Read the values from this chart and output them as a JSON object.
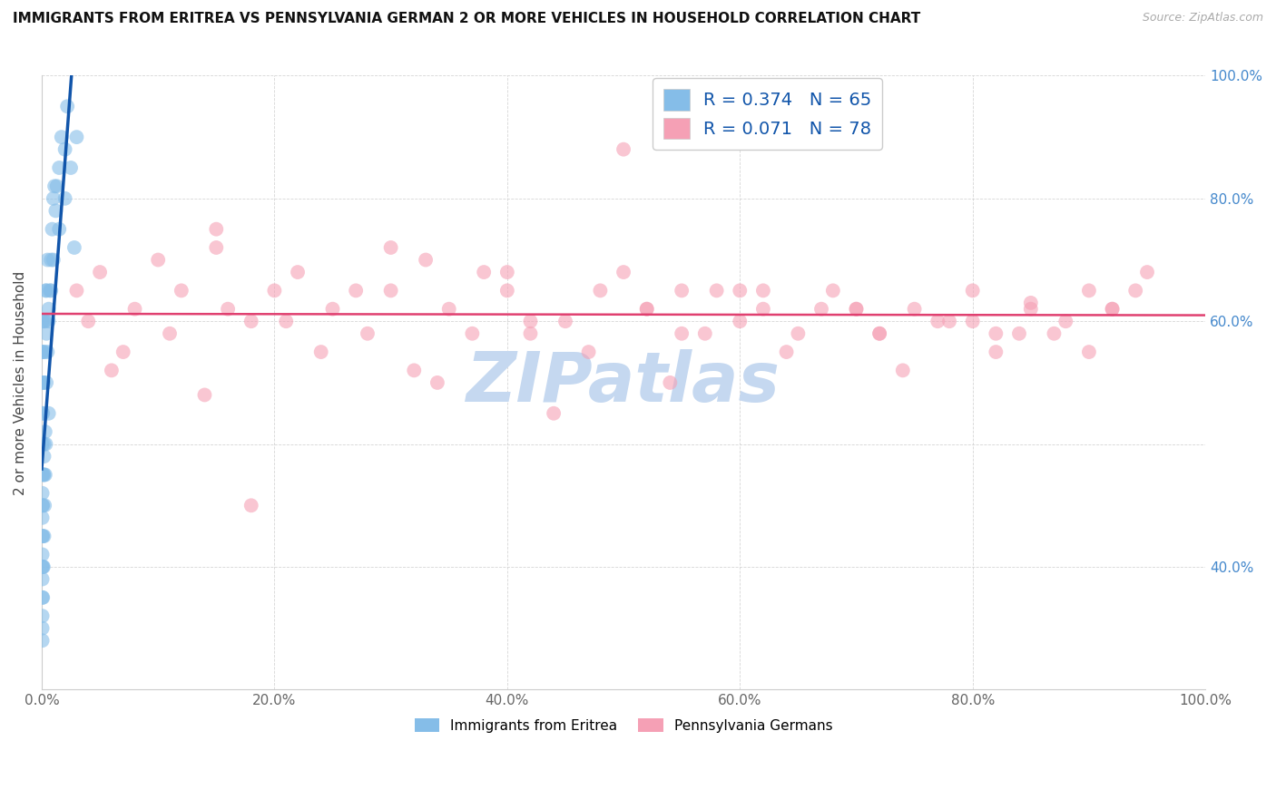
{
  "title": "IMMIGRANTS FROM ERITREA VS PENNSYLVANIA GERMAN 2 OR MORE VEHICLES IN HOUSEHOLD CORRELATION CHART",
  "source": "Source: ZipAtlas.com",
  "ylabel": "2 or more Vehicles in Household",
  "legend_label_blue": "Immigrants from Eritrea",
  "legend_label_pink": "Pennsylvania Germans",
  "R_blue": 0.374,
  "N_blue": 65,
  "R_pink": 0.071,
  "N_pink": 78,
  "color_blue": "#85bde8",
  "color_pink": "#f5a0b5",
  "line_color_blue": "#1155aa",
  "line_color_pink": "#e04070",
  "watermark": "ZIPatlas",
  "watermark_color": "#c5d8f0",
  "xlim": [
    0,
    100
  ],
  "ylim": [
    0,
    100
  ],
  "xtick_vals": [
    0,
    20,
    40,
    60,
    80,
    100
  ],
  "ytick_vals": [
    0,
    20,
    40,
    60,
    80,
    100
  ],
  "right_ytick_labels": [
    "",
    "40.0%",
    "",
    "60.0%",
    "",
    "80.0%",
    "100.0%"
  ],
  "grid_color": "#cccccc",
  "title_fontsize": 11,
  "source_fontsize": 9,
  "scatter_size": 130,
  "scatter_alpha": 0.6,
  "blue_x": [
    0.05,
    0.05,
    0.05,
    0.05,
    0.05,
    0.05,
    0.05,
    0.05,
    0.05,
    0.1,
    0.1,
    0.1,
    0.1,
    0.1,
    0.15,
    0.15,
    0.15,
    0.2,
    0.2,
    0.2,
    0.25,
    0.25,
    0.3,
    0.3,
    0.35,
    0.35,
    0.4,
    0.4,
    0.5,
    0.5,
    0.6,
    0.6,
    0.7,
    0.8,
    0.9,
    1.0,
    1.1,
    1.2,
    1.3,
    1.5,
    1.7,
    2.0,
    2.2,
    0.05,
    0.05,
    0.05,
    0.05,
    0.05,
    0.05,
    0.05,
    0.1,
    0.15,
    0.2,
    0.3,
    0.4,
    0.6,
    0.8,
    1.0,
    1.5,
    2.0,
    2.5,
    3.0,
    2.8,
    0.05,
    0.2
  ],
  "blue_y": [
    20,
    25,
    30,
    35,
    40,
    45,
    50,
    55,
    60,
    15,
    20,
    25,
    30,
    55,
    20,
    35,
    50,
    25,
    40,
    60,
    30,
    55,
    35,
    60,
    40,
    65,
    50,
    65,
    55,
    70,
    60,
    45,
    65,
    70,
    75,
    80,
    82,
    78,
    82,
    85,
    90,
    88,
    95,
    10,
    12,
    15,
    18,
    22,
    28,
    32,
    45,
    50,
    38,
    42,
    58,
    62,
    65,
    70,
    75,
    80,
    85,
    90,
    72,
    8,
    35
  ],
  "pink_x": [
    3,
    5,
    8,
    10,
    12,
    15,
    18,
    20,
    22,
    25,
    28,
    30,
    33,
    35,
    38,
    40,
    42,
    45,
    48,
    50,
    52,
    55,
    58,
    60,
    62,
    65,
    68,
    70,
    72,
    75,
    78,
    80,
    82,
    85,
    88,
    90,
    92,
    95,
    4,
    7,
    11,
    16,
    21,
    27,
    32,
    37,
    42,
    47,
    52,
    57,
    62,
    67,
    72,
    77,
    82,
    87,
    92,
    6,
    14,
    24,
    34,
    44,
    54,
    64,
    74,
    84,
    94,
    18,
    50,
    30,
    40,
    60,
    80,
    90,
    15,
    55,
    70,
    85
  ],
  "pink_y": [
    65,
    68,
    62,
    70,
    65,
    72,
    60,
    65,
    68,
    62,
    58,
    65,
    70,
    62,
    68,
    65,
    58,
    60,
    65,
    68,
    62,
    58,
    65,
    60,
    62,
    58,
    65,
    62,
    58,
    62,
    60,
    65,
    58,
    62,
    60,
    65,
    62,
    68,
    60,
    55,
    58,
    62,
    60,
    65,
    52,
    58,
    60,
    55,
    62,
    58,
    65,
    62,
    58,
    60,
    55,
    58,
    62,
    52,
    48,
    55,
    50,
    45,
    50,
    55,
    52,
    58,
    65,
    30,
    88,
    72,
    68,
    65,
    60,
    55,
    75,
    65,
    62,
    63
  ]
}
